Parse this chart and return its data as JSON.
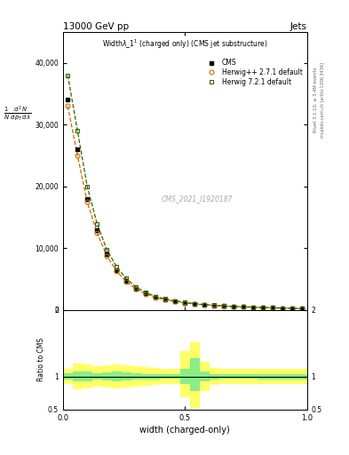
{
  "title_left": "13000 GeV pp",
  "title_right": "Jets",
  "plot_title": "Widthλ_1¹ (charged only) (CMS jet substructure)",
  "xlabel": "width (charged-only)",
  "ylabel_ratio": "Ratio to CMS",
  "watermark": "CMS_2021_I1920187",
  "right_label1": "Rivet 3.1.10, ≥ 3.4M events",
  "right_label2": "mcplots.cern.ch [arXiv:1306.3436]",
  "cms_x": [
    0.02,
    0.06,
    0.1,
    0.14,
    0.18,
    0.22,
    0.26,
    0.3,
    0.34,
    0.38,
    0.42,
    0.46,
    0.5,
    0.54,
    0.58,
    0.62,
    0.66,
    0.7,
    0.74,
    0.78,
    0.82,
    0.86,
    0.9,
    0.94,
    0.98
  ],
  "cms_y": [
    34000,
    26000,
    18000,
    13000,
    9000,
    6500,
    4800,
    3500,
    2700,
    2100,
    1700,
    1400,
    1200,
    1000,
    850,
    750,
    650,
    580,
    520,
    470,
    420,
    370,
    320,
    280,
    240
  ],
  "herwig_x": [
    0.02,
    0.06,
    0.1,
    0.14,
    0.18,
    0.22,
    0.26,
    0.3,
    0.34,
    0.38,
    0.42,
    0.46,
    0.5,
    0.54,
    0.58,
    0.62,
    0.66,
    0.7,
    0.74,
    0.78,
    0.82,
    0.86,
    0.9,
    0.94,
    0.98
  ],
  "herwig_y": [
    33000,
    25000,
    17500,
    12500,
    8800,
    6300,
    4600,
    3400,
    2600,
    2000,
    1650,
    1380,
    1160,
    980,
    840,
    740,
    640,
    570,
    510,
    460,
    410,
    360,
    315,
    275,
    235
  ],
  "herwig7_x": [
    0.02,
    0.06,
    0.1,
    0.14,
    0.18,
    0.22,
    0.26,
    0.3,
    0.34,
    0.38,
    0.42,
    0.46,
    0.5,
    0.54,
    0.58,
    0.62,
    0.66,
    0.7,
    0.74,
    0.78,
    0.82,
    0.86,
    0.9,
    0.94,
    0.98
  ],
  "herwig7_y": [
    38000,
    29000,
    20000,
    14000,
    9800,
    7000,
    5100,
    3700,
    2850,
    2200,
    1800,
    1500,
    1250,
    1050,
    900,
    790,
    680,
    600,
    540,
    490,
    440,
    385,
    335,
    290,
    250
  ],
  "ylim_main": [
    0,
    45000
  ],
  "yticks_main": [
    0,
    10000,
    20000,
    30000,
    40000
  ],
  "xlim": [
    0.0,
    1.0
  ],
  "xticks": [
    0.0,
    0.5,
    1.0
  ],
  "ratio_x": [
    0.02,
    0.06,
    0.1,
    0.14,
    0.18,
    0.22,
    0.26,
    0.3,
    0.34,
    0.38,
    0.42,
    0.46,
    0.5,
    0.54,
    0.58,
    0.62,
    0.66,
    0.7,
    0.74,
    0.78,
    0.82,
    0.86,
    0.9,
    0.94,
    0.98
  ],
  "ratio_yellow_lo": [
    0.88,
    0.8,
    0.82,
    0.84,
    0.83,
    0.82,
    0.83,
    0.84,
    0.86,
    0.87,
    0.88,
    0.89,
    0.68,
    0.52,
    0.78,
    0.87,
    0.89,
    0.89,
    0.89,
    0.89,
    0.88,
    0.88,
    0.88,
    0.88,
    0.88
  ],
  "ratio_yellow_hi": [
    1.12,
    1.2,
    1.18,
    1.16,
    1.17,
    1.18,
    1.17,
    1.16,
    1.14,
    1.13,
    1.12,
    1.11,
    1.38,
    1.52,
    1.22,
    1.13,
    1.11,
    1.11,
    1.11,
    1.11,
    1.12,
    1.12,
    1.12,
    1.12,
    1.12
  ],
  "ratio_green_lo": [
    0.95,
    0.92,
    0.93,
    0.95,
    0.94,
    0.93,
    0.94,
    0.95,
    0.96,
    0.96,
    0.97,
    0.97,
    0.88,
    0.78,
    0.92,
    0.96,
    0.97,
    0.97,
    0.97,
    0.97,
    0.96,
    0.96,
    0.96,
    0.96,
    0.96
  ],
  "ratio_green_hi": [
    1.05,
    1.08,
    1.07,
    1.05,
    1.06,
    1.07,
    1.06,
    1.05,
    1.04,
    1.04,
    1.03,
    1.03,
    1.12,
    1.27,
    1.08,
    1.04,
    1.03,
    1.03,
    1.03,
    1.03,
    1.04,
    1.04,
    1.04,
    1.04,
    1.04
  ],
  "ylim_ratio": [
    0.5,
    2.0
  ],
  "yticks_ratio": [
    0.5,
    1.0,
    2.0
  ],
  "color_cms": "#000000",
  "color_herwig": "#cc6600",
  "color_herwig7": "#336600",
  "color_yellow": "#ffff66",
  "color_green": "#88ee88"
}
